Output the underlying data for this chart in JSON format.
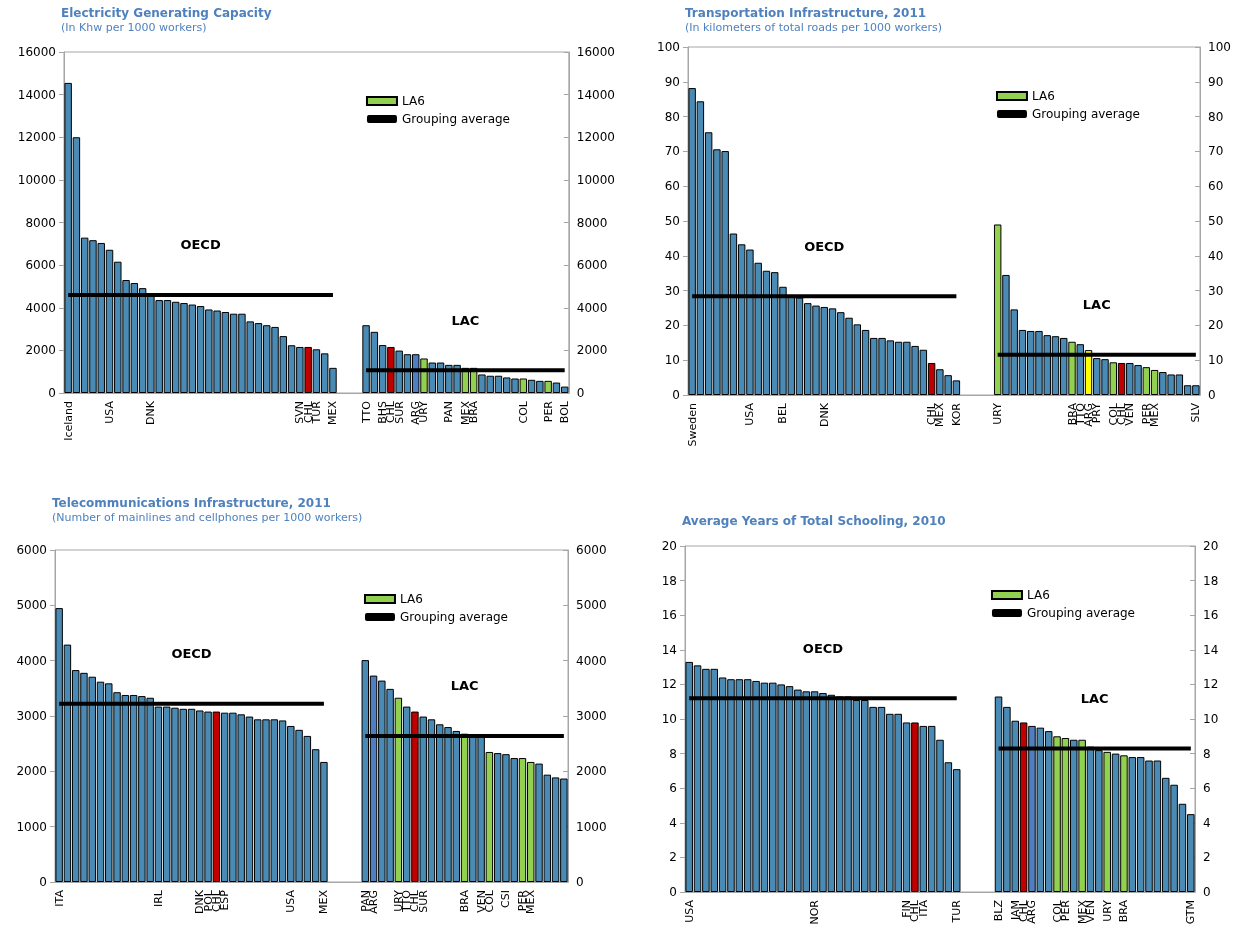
{
  "chart_data": [
    {
      "type": "bar",
      "title": "Electricity Generating Capacity",
      "subtitle": "(In Khw per 1000 workers)",
      "categories": [
        "Iceland",
        null,
        null,
        null,
        null,
        "USA",
        null,
        null,
        null,
        null,
        "DNK",
        null,
        null,
        null,
        null,
        null,
        null,
        null,
        null,
        null,
        null,
        null,
        null,
        null,
        null,
        null,
        null,
        null,
        "SVN",
        "CHL",
        "TUR",
        null,
        "MEX",
        null,
        null,
        null,
        "TTO",
        null,
        "BHS",
        "CHL",
        "SUR",
        null,
        "ARG",
        "URY",
        null,
        null,
        "PAN",
        null,
        "MEX",
        "BRA",
        null,
        null,
        null,
        null,
        null,
        "COL",
        null,
        null,
        "PER",
        null,
        "BOL"
      ],
      "series": [
        {
          "color": "#4a8bb5",
          "values": [
            14550,
            12000,
            7290,
            7170,
            7040,
            6720,
            6160,
            5300,
            5160,
            4920,
            4560,
            4360,
            4360,
            4280,
            4220,
            4150,
            4080,
            3920,
            3870,
            3800,
            3720,
            3720,
            3360,
            3280,
            3180,
            3100,
            2670,
            2240,
            2160,
            null,
            2050,
            1860,
            1180,
            null,
            null,
            null,
            3180,
            2870,
            2250,
            null,
            1990,
            1820,
            null,
            null,
            1430,
            1430,
            1320,
            1320,
            null,
            null,
            870,
            810,
            810,
            730,
            680,
            null,
            620,
            570,
            null,
            490,
            300
          ]
        },
        {
          "name": "LA6",
          "color": "#92d050",
          "values": [
            null,
            null,
            null,
            null,
            null,
            null,
            null,
            null,
            null,
            null,
            null,
            null,
            null,
            null,
            null,
            null,
            null,
            null,
            null,
            null,
            null,
            null,
            null,
            null,
            null,
            null,
            null,
            null,
            null,
            null,
            null,
            null,
            null,
            null,
            null,
            null,
            null,
            null,
            null,
            null,
            null,
            null,
            null,
            1620,
            null,
            null,
            null,
            null,
            1180,
            1180,
            null,
            null,
            null,
            null,
            null,
            680,
            null,
            null,
            570,
            null,
            null
          ]
        },
        {
          "color": "#c00000",
          "values": [
            null,
            null,
            null,
            null,
            null,
            null,
            null,
            null,
            null,
            null,
            null,
            null,
            null,
            null,
            null,
            null,
            null,
            null,
            null,
            null,
            null,
            null,
            null,
            null,
            null,
            null,
            null,
            null,
            null,
            2160,
            null,
            null,
            null,
            null,
            null,
            null,
            null,
            null,
            null,
            2160,
            null,
            null,
            null,
            null,
            null,
            null,
            null,
            null,
            null,
            null,
            null,
            null,
            null,
            null,
            null,
            null,
            null,
            null,
            null,
            null,
            null
          ]
        },
        {
          "color": "#4f7fc0",
          "values": [
            null,
            null,
            null,
            null,
            null,
            null,
            null,
            null,
            null,
            null,
            null,
            null,
            null,
            null,
            null,
            null,
            null,
            null,
            null,
            null,
            null,
            null,
            null,
            null,
            null,
            null,
            null,
            null,
            null,
            null,
            null,
            null,
            null,
            null,
            null,
            null,
            null,
            null,
            null,
            null,
            null,
            null,
            1820,
            null,
            null,
            null,
            null,
            null,
            null,
            null,
            null,
            null,
            null,
            null,
            null,
            null,
            null,
            null,
            null,
            null,
            null
          ]
        },
        {
          "type": "line",
          "name": "Grouping average",
          "color": "#000000",
          "values": [
            4600,
            4600,
            4600,
            4600,
            4600,
            4600,
            4600,
            4600,
            4600,
            4600,
            4600,
            4600,
            4600,
            4600,
            4600,
            4600,
            4600,
            4600,
            4600,
            4600,
            4600,
            4600,
            4600,
            4600,
            4600,
            4600,
            4600,
            4600,
            4600,
            4600,
            4600,
            4600,
            4600,
            null,
            null,
            null,
            1070,
            1070,
            1070,
            1070,
            1070,
            1070,
            1070,
            1070,
            1070,
            1070,
            1070,
            1070,
            1070,
            1070,
            1070,
            1070,
            1070,
            1070,
            1070,
            1070,
            1070,
            1070,
            1070,
            1070,
            1070
          ]
        }
      ],
      "ylim": [
        0,
        16000
      ],
      "yticks": [
        0,
        2000,
        4000,
        6000,
        8000,
        10000,
        12000,
        14000,
        16000
      ],
      "y2lim": [
        0,
        16000
      ],
      "y2ticks": [
        0,
        2000,
        4000,
        6000,
        8000,
        10000,
        12000,
        14000,
        16000
      ],
      "annotations": [
        "OECD",
        "LAC"
      ],
      "legend": "top right"
    },
    {
      "type": "bar",
      "title": "Transportation Infrastructure, 2011",
      "subtitle": "(In kilometers of total roads per 1000 workers)",
      "categories": [
        "Sweden",
        null,
        null,
        null,
        null,
        null,
        null,
        "USA",
        null,
        null,
        null,
        "BEL",
        null,
        null,
        null,
        null,
        "DNK",
        null,
        null,
        null,
        null,
        null,
        null,
        null,
        null,
        null,
        null,
        null,
        null,
        "CHL",
        "MEX",
        null,
        "KOR",
        null,
        null,
        null,
        null,
        "URY",
        null,
        null,
        null,
        null,
        null,
        null,
        null,
        null,
        "BRA",
        "TTO",
        "ARG",
        "PRY",
        null,
        "COL",
        "CHL",
        "VEN",
        null,
        "PER",
        "MEX",
        null,
        null,
        null,
        null,
        "SLV"
      ],
      "series": [
        {
          "color": "#4a8bb5",
          "values": [
            88.2,
            84.4,
            75.5,
            70.6,
            70.1,
            46.4,
            43.3,
            41.8,
            38.0,
            35.7,
            35.3,
            31.1,
            28.5,
            28.0,
            26.4,
            25.7,
            25.3,
            24.9,
            23.8,
            22.2,
            20.3,
            18.7,
            16.4,
            16.4,
            15.7,
            15.3,
            15.3,
            14.1,
            13.0,
            null,
            7.4,
            5.7,
            4.2,
            null,
            null,
            null,
            null,
            null,
            34.5,
            24.6,
            18.7,
            18.4,
            18.4,
            17.2,
            16.9,
            16.4,
            null,
            14.6,
            null,
            10.6,
            10.3,
            null,
            null,
            9.2,
            8.6,
            null,
            null,
            6.6,
            5.9,
            5.9,
            2.8,
            2.8
          ]
        },
        {
          "name": "LA6",
          "color": "#92d050",
          "values": [
            null,
            null,
            null,
            null,
            null,
            null,
            null,
            null,
            null,
            null,
            null,
            null,
            null,
            null,
            null,
            null,
            null,
            null,
            null,
            null,
            null,
            null,
            null,
            null,
            null,
            null,
            null,
            null,
            null,
            null,
            null,
            null,
            null,
            null,
            null,
            null,
            null,
            49.0,
            null,
            null,
            null,
            null,
            null,
            null,
            null,
            null,
            15.3,
            null,
            null,
            null,
            null,
            9.4,
            null,
            null,
            null,
            8.0,
            7.2,
            null,
            null,
            null,
            null,
            null
          ]
        },
        {
          "color": "#c00000",
          "values": [
            null,
            null,
            null,
            null,
            null,
            null,
            null,
            null,
            null,
            null,
            null,
            null,
            null,
            null,
            null,
            null,
            null,
            null,
            null,
            null,
            null,
            null,
            null,
            null,
            null,
            null,
            null,
            null,
            null,
            9.2,
            null,
            null,
            null,
            null,
            null,
            null,
            null,
            null,
            null,
            null,
            null,
            null,
            null,
            null,
            null,
            null,
            null,
            null,
            null,
            null,
            null,
            null,
            9.2,
            null,
            null,
            null,
            null,
            null,
            null,
            null,
            null,
            null
          ]
        },
        {
          "color": "#ffff00",
          "values": [
            null,
            null,
            null,
            null,
            null,
            null,
            null,
            null,
            null,
            null,
            null,
            null,
            null,
            null,
            null,
            null,
            null,
            null,
            null,
            null,
            null,
            null,
            null,
            null,
            null,
            null,
            null,
            null,
            null,
            null,
            null,
            null,
            null,
            null,
            null,
            null,
            null,
            null,
            null,
            null,
            null,
            null,
            null,
            null,
            null,
            null,
            null,
            null,
            12.9,
            null,
            null,
            null,
            null,
            null,
            null,
            null,
            null,
            null,
            null,
            null,
            null,
            null
          ]
        },
        {
          "type": "line",
          "name": "Grouping average",
          "color": "#000000",
          "values": [
            28.4,
            28.4,
            28.4,
            28.4,
            28.4,
            28.4,
            28.4,
            28.4,
            28.4,
            28.4,
            28.4,
            28.4,
            28.4,
            28.4,
            28.4,
            28.4,
            28.4,
            28.4,
            28.4,
            28.4,
            28.4,
            28.4,
            28.4,
            28.4,
            28.4,
            28.4,
            28.4,
            28.4,
            28.4,
            28.4,
            28.4,
            28.4,
            28.4,
            null,
            null,
            null,
            null,
            11.6,
            11.6,
            11.6,
            11.6,
            11.6,
            11.6,
            11.6,
            11.6,
            11.6,
            11.6,
            11.6,
            11.6,
            11.6,
            11.6,
            11.6,
            11.6,
            11.6,
            11.6,
            11.6,
            11.6,
            11.6,
            11.6,
            11.6,
            11.6,
            11.6
          ]
        }
      ],
      "ylim": [
        0,
        100
      ],
      "yticks": [
        0,
        10,
        20,
        30,
        40,
        50,
        60,
        70,
        80,
        90,
        100
      ],
      "y2lim": [
        0,
        100
      ],
      "y2ticks": [
        0,
        10,
        20,
        30,
        40,
        50,
        60,
        70,
        80,
        90,
        100
      ],
      "annotations": [
        "OECD",
        "LAC"
      ],
      "legend": "top right"
    },
    {
      "type": "bar",
      "title": "Telecommunications Infrastructure, 2011",
      "subtitle": "(Number of mainlines and cellphones per 1000 workers)",
      "categories": [
        "ITA",
        null,
        null,
        null,
        null,
        null,
        null,
        null,
        null,
        null,
        null,
        null,
        "IRL",
        null,
        null,
        null,
        null,
        "DNK",
        "POL",
        "CHL",
        "ESP",
        null,
        null,
        null,
        null,
        null,
        null,
        null,
        "USA",
        null,
        null,
        null,
        "MEX",
        null,
        null,
        null,
        null,
        "PAN",
        "ARG",
        null,
        null,
        "URY",
        "TTO",
        "CHL",
        "SUR",
        null,
        null,
        null,
        null,
        "BRA",
        null,
        "VEN",
        "COL",
        null,
        "CSI",
        null,
        "PER",
        "MEX",
        null,
        null,
        null,
        null
      ],
      "series": [
        {
          "color": "#4a8bb5",
          "values": [
            4950,
            4290,
            3830,
            3780,
            3710,
            3620,
            3590,
            3430,
            3380,
            3380,
            3360,
            3330,
            3170,
            3170,
            3150,
            3130,
            3130,
            3100,
            3080,
            null,
            3060,
            3060,
            3030,
            2990,
            2940,
            2940,
            2940,
            2920,
            2820,
            2750,
            2640,
            2400,
            2170,
            null,
            null,
            null,
            null,
            4010,
            null,
            3640,
            3490,
            null,
            3170,
            null,
            2990,
            2940,
            2850,
            2800,
            2730,
            null,
            2660,
            2660,
            null,
            2330,
            2310,
            2240,
            null,
            null,
            2140,
            1940,
            1890,
            1870
          ]
        },
        {
          "name": "LA6",
          "color": "#92d050",
          "values": [
            null,
            null,
            null,
            null,
            null,
            null,
            null,
            null,
            null,
            null,
            null,
            null,
            null,
            null,
            null,
            null,
            null,
            null,
            null,
            null,
            null,
            null,
            null,
            null,
            null,
            null,
            null,
            null,
            null,
            null,
            null,
            null,
            null,
            null,
            null,
            null,
            null,
            null,
            null,
            null,
            null,
            3330,
            null,
            null,
            null,
            null,
            null,
            null,
            null,
            2680,
            null,
            null,
            2350,
            null,
            null,
            null,
            2240,
            2170,
            null,
            null,
            null,
            null
          ]
        },
        {
          "color": "#c00000",
          "values": [
            null,
            null,
            null,
            null,
            null,
            null,
            null,
            null,
            null,
            null,
            null,
            null,
            null,
            null,
            null,
            null,
            null,
            null,
            null,
            3080,
            null,
            null,
            null,
            null,
            null,
            null,
            null,
            null,
            null,
            null,
            null,
            null,
            null,
            null,
            null,
            null,
            null,
            null,
            null,
            null,
            null,
            null,
            null,
            3080,
            null,
            null,
            null,
            null,
            null,
            null,
            null,
            null,
            null,
            null,
            null,
            null,
            null,
            null,
            null,
            null,
            null,
            null
          ]
        },
        {
          "color": "#4f7fc0",
          "values": [
            null,
            null,
            null,
            null,
            null,
            null,
            null,
            null,
            null,
            null,
            null,
            null,
            null,
            null,
            null,
            null,
            null,
            null,
            null,
            null,
            null,
            null,
            null,
            null,
            null,
            null,
            null,
            null,
            null,
            null,
            null,
            null,
            null,
            null,
            null,
            null,
            null,
            null,
            3730,
            null,
            null,
            null,
            null,
            null,
            null,
            null,
            null,
            null,
            null,
            null,
            null,
            null,
            null,
            null,
            null,
            null,
            null,
            null,
            null,
            null,
            null,
            null
          ]
        },
        {
          "type": "line",
          "name": "Grouping average",
          "color": "#000000",
          "values": [
            3220,
            3220,
            3220,
            3220,
            3220,
            3220,
            3220,
            3220,
            3220,
            3220,
            3220,
            3220,
            3220,
            3220,
            3220,
            3220,
            3220,
            3220,
            3220,
            3220,
            3220,
            3220,
            3220,
            3220,
            3220,
            3220,
            3220,
            3220,
            3220,
            3220,
            3220,
            3220,
            3220,
            null,
            null,
            null,
            null,
            2640,
            2640,
            2640,
            2640,
            2640,
            2640,
            2640,
            2640,
            2640,
            2640,
            2640,
            2640,
            2640,
            2640,
            2640,
            2640,
            2640,
            2640,
            2640,
            2640,
            2640,
            2640,
            2640,
            2640,
            2640
          ]
        }
      ],
      "ylim": [
        0,
        6000
      ],
      "yticks": [
        0,
        1000,
        2000,
        3000,
        4000,
        5000,
        6000
      ],
      "y2lim": [
        0,
        6000
      ],
      "y2ticks": [
        0,
        1000,
        2000,
        3000,
        4000,
        5000,
        6000
      ],
      "annotations": [
        "OECD",
        "LAC"
      ],
      "legend": "top right"
    },
    {
      "type": "bar",
      "title": "Average Years of Total Schooling, 2010",
      "categories": [
        "USA",
        null,
        null,
        null,
        null,
        null,
        null,
        null,
        null,
        null,
        null,
        null,
        null,
        null,
        null,
        "NOR",
        null,
        null,
        null,
        null,
        null,
        null,
        null,
        null,
        null,
        null,
        "FIN",
        "CHL",
        "ITA",
        null,
        null,
        null,
        "TUR",
        null,
        null,
        null,
        null,
        "BLZ",
        null,
        "JAM",
        "CHL",
        "ARG",
        null,
        null,
        "COL",
        "PER",
        null,
        "MEX",
        "VEN",
        null,
        "URY",
        null,
        "BRA",
        null,
        null,
        null,
        null,
        null,
        null,
        null,
        "GTM"
      ],
      "series": [
        {
          "color": "#4a8bb5",
          "values": [
            13.3,
            13.1,
            12.9,
            12.9,
            12.4,
            12.3,
            12.3,
            12.3,
            12.2,
            12.1,
            12.1,
            12.0,
            11.9,
            11.7,
            11.6,
            11.6,
            11.5,
            11.4,
            11.3,
            11.3,
            11.1,
            11.1,
            10.7,
            10.7,
            10.3,
            10.3,
            9.8,
            null,
            9.6,
            9.6,
            8.8,
            7.5,
            7.1,
            null,
            null,
            null,
            null,
            11.3,
            10.7,
            9.9,
            null,
            null,
            9.5,
            9.3,
            null,
            null,
            8.8,
            null,
            8.4,
            8.2,
            null,
            8.0,
            null,
            7.8,
            7.8,
            7.6,
            7.6,
            6.6,
            6.2,
            5.1,
            4.5
          ]
        },
        {
          "name": "LA6",
          "color": "#92d050",
          "values": [
            null,
            null,
            null,
            null,
            null,
            null,
            null,
            null,
            null,
            null,
            null,
            null,
            null,
            null,
            null,
            null,
            null,
            null,
            null,
            null,
            null,
            null,
            null,
            null,
            null,
            null,
            null,
            null,
            null,
            null,
            null,
            null,
            null,
            null,
            null,
            null,
            null,
            null,
            null,
            null,
            null,
            null,
            null,
            null,
            9.0,
            8.9,
            null,
            8.8,
            null,
            null,
            8.1,
            null,
            7.9,
            null,
            null,
            null,
            null,
            null,
            null,
            null,
            null
          ]
        },
        {
          "color": "#c00000",
          "values": [
            null,
            null,
            null,
            null,
            null,
            null,
            null,
            null,
            null,
            null,
            null,
            null,
            null,
            null,
            null,
            null,
            null,
            null,
            null,
            null,
            null,
            null,
            null,
            null,
            null,
            null,
            null,
            9.8,
            null,
            null,
            null,
            null,
            null,
            null,
            null,
            null,
            null,
            null,
            null,
            null,
            9.8,
            null,
            null,
            null,
            null,
            null,
            null,
            null,
            null,
            null,
            null,
            null,
            null,
            null,
            null,
            null,
            null,
            null,
            null,
            null,
            null
          ]
        },
        {
          "color": "#4f7fc0",
          "values": [
            null,
            null,
            null,
            null,
            null,
            null,
            null,
            null,
            null,
            null,
            null,
            null,
            null,
            null,
            null,
            null,
            null,
            null,
            null,
            null,
            null,
            null,
            null,
            null,
            null,
            null,
            null,
            null,
            null,
            null,
            null,
            null,
            null,
            null,
            null,
            null,
            null,
            null,
            null,
            null,
            null,
            9.6,
            null,
            null,
            null,
            null,
            null,
            null,
            null,
            null,
            null,
            null,
            null,
            null,
            null,
            null,
            null,
            null,
            null,
            null,
            null
          ]
        },
        {
          "type": "line",
          "name": "Grouping average",
          "color": "#000000",
          "values": [
            11.2,
            11.2,
            11.2,
            11.2,
            11.2,
            11.2,
            11.2,
            11.2,
            11.2,
            11.2,
            11.2,
            11.2,
            11.2,
            11.2,
            11.2,
            11.2,
            11.2,
            11.2,
            11.2,
            11.2,
            11.2,
            11.2,
            11.2,
            11.2,
            11.2,
            11.2,
            11.2,
            11.2,
            11.2,
            11.2,
            11.2,
            11.2,
            11.2,
            null,
            null,
            null,
            null,
            8.3,
            8.3,
            8.3,
            8.3,
            8.3,
            8.3,
            8.3,
            8.3,
            8.3,
            8.3,
            8.3,
            8.3,
            8.3,
            8.3,
            8.3,
            8.3,
            8.3,
            8.3,
            8.3,
            8.3,
            8.3,
            8.3,
            8.3,
            8.3
          ]
        }
      ],
      "ylim": [
        0,
        20
      ],
      "yticks": [
        0,
        2,
        4,
        6,
        8,
        10,
        12,
        14,
        16,
        18,
        20
      ],
      "y2lim": [
        0,
        20
      ],
      "y2ticks": [
        0,
        2,
        4,
        6,
        8,
        10,
        12,
        14,
        16,
        18,
        20
      ],
      "annotations": [
        "OECD",
        "LAC"
      ],
      "legend": "top right"
    }
  ]
}
